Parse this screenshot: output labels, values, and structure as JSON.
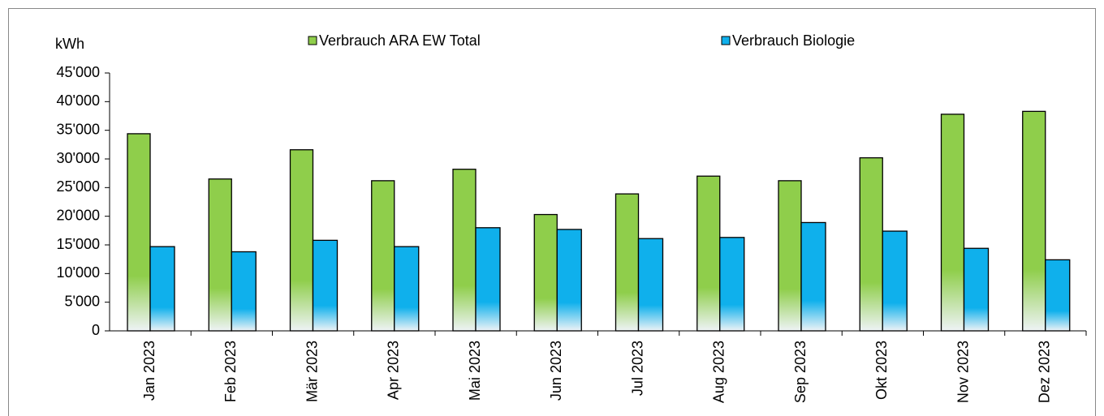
{
  "chart_data": {
    "type": "bar",
    "y_label": "kWh",
    "categories": [
      "Jan 2023",
      "Feb 2023",
      "Mär 2023",
      "Apr 2023",
      "Mai 2023",
      "Jun 2023",
      "Jul 2023",
      "Aug 2023",
      "Sep 2023",
      "Okt 2023",
      "Nov 2023",
      "Dez 2023"
    ],
    "series": [
      {
        "name": "Verbrauch ARA EW Total",
        "color": "#8fce4b",
        "values": [
          34400,
          26500,
          31600,
          26200,
          28200,
          20300,
          23900,
          27000,
          26200,
          30200,
          37800,
          38300
        ]
      },
      {
        "name": "Verbrauch Biologie",
        "color": "#0fb0ec",
        "values": [
          14700,
          13800,
          15800,
          14700,
          18000,
          17700,
          16100,
          16300,
          18900,
          17400,
          14400,
          12400
        ]
      }
    ],
    "ylim": [
      0,
      45000
    ],
    "yticks": [
      0,
      {
        "value": 5000,
        "label": "5'000"
      },
      {
        "value": 10000,
        "label": "10'000"
      },
      {
        "value": 15000,
        "label": "15'000"
      },
      {
        "value": 20000,
        "label": "20'000"
      },
      {
        "value": 25000,
        "label": "25'000"
      },
      {
        "value": 30000,
        "label": "30'000"
      },
      {
        "value": 35000,
        "label": "35'000"
      },
      {
        "value": 40000,
        "label": "40'000"
      },
      {
        "value": 45000,
        "label": "45'000"
      }
    ],
    "legend": "top"
  }
}
